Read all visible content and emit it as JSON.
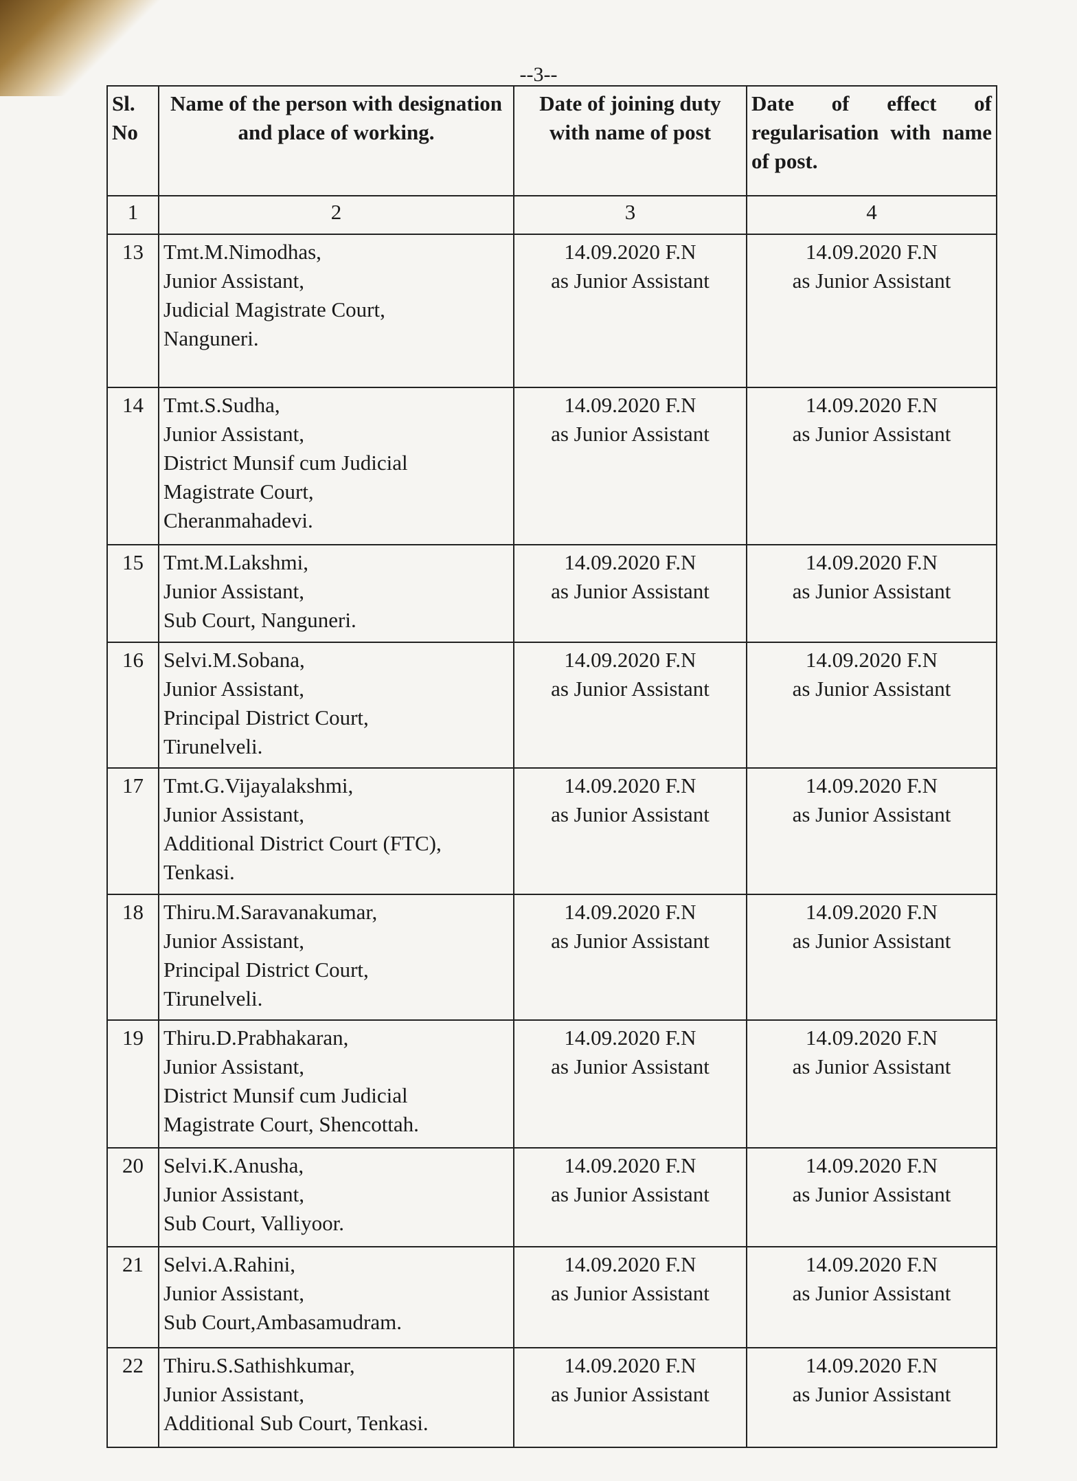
{
  "page_number": "--3--",
  "table": {
    "headers": [
      "Sl. No",
      "Name of the person with designation and place of working.",
      "Date of joining duty with name of post",
      "Date of effect of regularisation with name of post."
    ],
    "column_numbers": [
      "1",
      "2",
      "3",
      "4"
    ],
    "rows": [
      {
        "sl": "13",
        "name": [
          "Tmt.M.Nimodhas,",
          "Junior Assistant,",
          "Judicial Magistrate Court,",
          "Nanguneri."
        ],
        "joining": [
          "14.09.2020 F.N",
          "as Junior Assistant"
        ],
        "regularisation": [
          "14.09.2020 F.N",
          "as Junior Assistant"
        ]
      },
      {
        "sl": "14",
        "name": [
          "Tmt.S.Sudha,",
          "Junior Assistant,",
          "District Munsif cum Judicial",
          "Magistrate Court,",
          "Cheranmahadevi."
        ],
        "joining": [
          "14.09.2020 F.N",
          "as Junior Assistant"
        ],
        "regularisation": [
          "14.09.2020 F.N",
          "as Junior Assistant"
        ]
      },
      {
        "sl": "15",
        "name": [
          "Tmt.M.Lakshmi,",
          "Junior Assistant,",
          "Sub Court, Nanguneri."
        ],
        "joining": [
          "14.09.2020 F.N",
          "as Junior Assistant"
        ],
        "regularisation": [
          "14.09.2020 F.N",
          "as Junior Assistant"
        ]
      },
      {
        "sl": "16",
        "name": [
          "Selvi.M.Sobana,",
          "Junior Assistant,",
          "Principal District Court,",
          "Tirunelveli."
        ],
        "joining": [
          "14.09.2020 F.N",
          "as Junior Assistant"
        ],
        "regularisation": [
          "14.09.2020 F.N",
          "as Junior Assistant"
        ]
      },
      {
        "sl": "17",
        "name": [
          "Tmt.G.Vijayalakshmi,",
          "Junior Assistant,",
          "Additional District Court (FTC),",
          "Tenkasi."
        ],
        "joining": [
          "14.09.2020 F.N",
          "as Junior Assistant"
        ],
        "regularisation": [
          "14.09.2020 F.N",
          "as Junior Assistant"
        ]
      },
      {
        "sl": "18",
        "name": [
          "Thiru.M.Saravanakumar,",
          "Junior Assistant,",
          "Principal District Court,",
          "Tirunelveli."
        ],
        "joining": [
          "14.09.2020 F.N",
          "as Junior Assistant"
        ],
        "regularisation": [
          "14.09.2020 F.N",
          "as Junior Assistant"
        ]
      },
      {
        "sl": "19",
        "name": [
          "Thiru.D.Prabhakaran,",
          "Junior Assistant,",
          "District Munsif cum Judicial",
          "Magistrate Court, Shencottah."
        ],
        "joining": [
          "14.09.2020 F.N",
          "as Junior Assistant"
        ],
        "regularisation": [
          "14.09.2020 F.N",
          "as Junior Assistant"
        ]
      },
      {
        "sl": "20",
        "name": [
          "Selvi.K.Anusha,",
          "Junior Assistant,",
          "Sub Court, Valliyoor."
        ],
        "joining": [
          "14.09.2020 F.N",
          "as Junior Assistant"
        ],
        "regularisation": [
          "14.09.2020 F.N",
          "as Junior Assistant"
        ]
      },
      {
        "sl": "21",
        "name": [
          "Selvi.A.Rahini,",
          "Junior Assistant,",
          "Sub Court,Ambasamudram."
        ],
        "joining": [
          "14.09.2020 F.N",
          "as Junior Assistant"
        ],
        "regularisation": [
          "14.09.2020 F.N",
          "as Junior Assistant"
        ]
      },
      {
        "sl": "22",
        "name": [
          "Thiru.S.Sathishkumar,",
          "Junior Assistant,",
          "Additional Sub Court, Tenkasi."
        ],
        "joining": [
          "14.09.2020 F.N",
          "as Junior Assistant"
        ],
        "regularisation": [
          "14.09.2020 F.N",
          "as Junior Assistant"
        ]
      }
    ]
  }
}
